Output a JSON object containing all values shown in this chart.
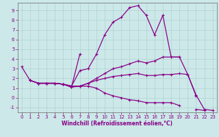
{
  "xlabel": "Windchill (Refroidissement éolien,°C)",
  "bg_color": "#cce8e8",
  "line_color": "#880088",
  "xlim": [
    -0.5,
    23.5
  ],
  "ylim": [
    -1.5,
    9.8
  ],
  "yticks": [
    -1,
    0,
    1,
    2,
    3,
    4,
    5,
    6,
    7,
    8,
    9
  ],
  "xticks": [
    0,
    1,
    2,
    3,
    4,
    5,
    6,
    7,
    8,
    9,
    10,
    11,
    12,
    13,
    14,
    15,
    16,
    17,
    18,
    19,
    20,
    21,
    22,
    23
  ],
  "series": [
    [
      3.2,
      1.8,
      1.5,
      1.5,
      1.5,
      1.4,
      1.2,
      2.8,
      3.0,
      4.5,
      6.5,
      7.8,
      8.3,
      9.3,
      9.5,
      8.5,
      6.5,
      8.5,
      4.2,
      4.2,
      2.4,
      0.2,
      null,
      null
    ],
    [
      null,
      null,
      1.5,
      1.5,
      1.5,
      1.4,
      1.1,
      4.5,
      null,
      null,
      null,
      null,
      null,
      null,
      null,
      null,
      null,
      null,
      null,
      null,
      null,
      null,
      null,
      null
    ],
    [
      null,
      1.8,
      1.5,
      1.5,
      1.5,
      1.4,
      1.1,
      1.2,
      1.5,
      2.0,
      2.5,
      3.0,
      3.2,
      3.5,
      3.8,
      3.6,
      3.8,
      4.2,
      4.2,
      4.2,
      null,
      null,
      null,
      null
    ],
    [
      null,
      1.8,
      1.5,
      1.5,
      1.5,
      1.4,
      1.2,
      1.2,
      1.2,
      1.0,
      0.5,
      0.2,
      0.0,
      -0.2,
      -0.3,
      -0.5,
      -0.5,
      -0.5,
      -0.5,
      -0.8,
      null,
      -1.2,
      -1.3,
      null
    ],
    [
      null,
      1.8,
      1.5,
      1.5,
      1.5,
      1.4,
      1.2,
      1.2,
      1.5,
      1.8,
      2.0,
      2.2,
      2.3,
      2.4,
      2.5,
      2.3,
      2.3,
      2.4,
      2.4,
      2.5,
      2.4,
      0.3,
      -1.2,
      -1.3
    ]
  ],
  "grid_color": "#aacccc",
  "marker": "+",
  "markersize": 3,
  "linewidth": 0.9,
  "tick_fontsize": 5.0,
  "xlabel_fontsize": 5.5
}
